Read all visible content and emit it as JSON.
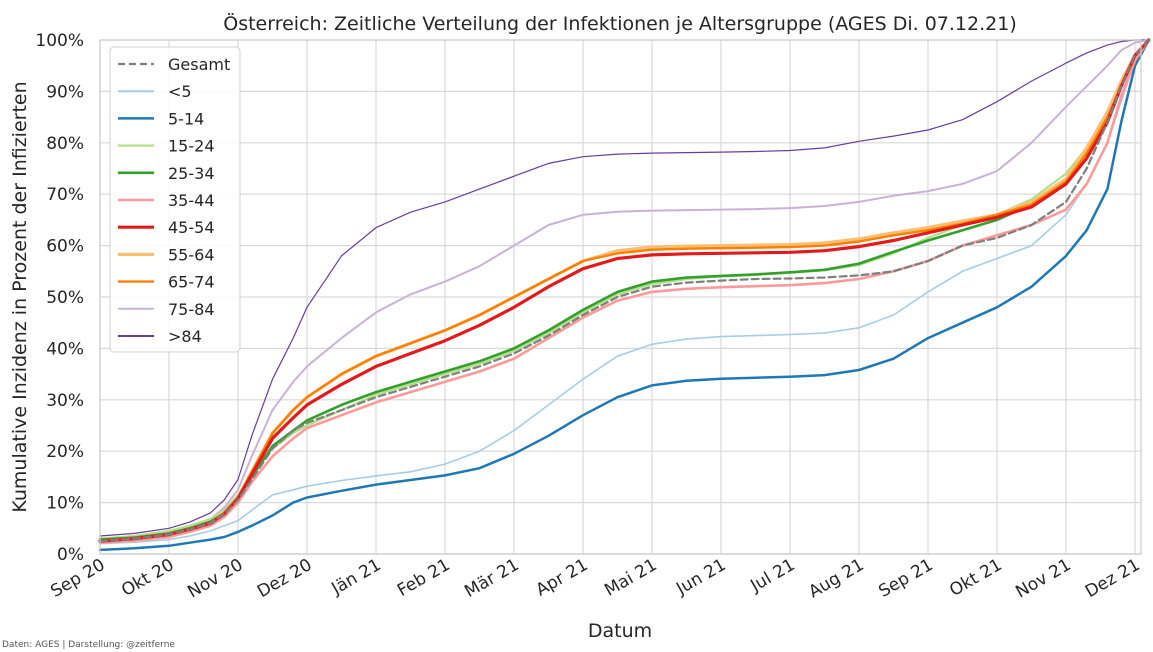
{
  "footer": "Daten: AGES | Darstellung: @zeitferne",
  "chart_data": {
    "type": "line",
    "title": "Österreich: Zeitliche Verteilung der Infektionen je Altersgruppe (AGES Di. 07.12.21)",
    "xlabel": "Datum",
    "ylabel": "Kumulative Inzidenz in Prozent der Infizierten",
    "x_ticks": [
      "Sep 20",
      "Okt 20",
      "Nov 20",
      "Dez 20",
      "Jän 21",
      "Feb 21",
      "Mär 21",
      "Apr 21",
      "Mai 21",
      "Jun 21",
      "Jul 21",
      "Aug 21",
      "Sep 21",
      "Okt 21",
      "Nov 21",
      "Dez 21"
    ],
    "y_ticks": [
      "0%",
      "10%",
      "20%",
      "30%",
      "40%",
      "50%",
      "60%",
      "70%",
      "80%",
      "90%",
      "100%"
    ],
    "ylim": [
      0,
      100
    ],
    "x_unit": "months since Sep 2020 (Sep 20 = 0, Dez 21 = 15)",
    "xlim": [
      0,
      15.2
    ],
    "grid": true,
    "legend_position": "top-left",
    "x": [
      0,
      0.5,
      1,
      1.3,
      1.6,
      1.8,
      2,
      2.2,
      2.5,
      2.8,
      3,
      3.5,
      4,
      4.5,
      5,
      5.5,
      6,
      6.5,
      7,
      7.5,
      8,
      8.5,
      9,
      9.5,
      10,
      10.5,
      11,
      11.5,
      12,
      12.5,
      13,
      13.5,
      14,
      14.3,
      14.6,
      14.8,
      15,
      15.2
    ],
    "series": [
      {
        "name": "Gesamt",
        "color": "#7f7f7f",
        "style": "dashed",
        "width": 2.2,
        "values": [
          2.5,
          3,
          3.8,
          4.8,
          6,
          7.8,
          10.5,
          14.5,
          20.5,
          24,
          25.5,
          28,
          30.5,
          32.5,
          34.5,
          36.5,
          39,
          42.5,
          46.5,
          50,
          52,
          52.8,
          53.2,
          53.5,
          53.6,
          53.8,
          54.2,
          55,
          57,
          60,
          61.5,
          64,
          68.5,
          75,
          84,
          91,
          97,
          100
        ]
      },
      {
        "name": "<5",
        "color": "#a6cee3",
        "style": "solid",
        "width": 1.6,
        "values": [
          2,
          2.3,
          2.8,
          3.5,
          4.5,
          5.5,
          6.5,
          8.5,
          11.5,
          12.5,
          13.2,
          14.3,
          15.2,
          16,
          17.5,
          20,
          24,
          29,
          34,
          38.5,
          40.8,
          41.8,
          42.3,
          42.5,
          42.7,
          43,
          44,
          46.5,
          51,
          55,
          57.5,
          60,
          66,
          72,
          80,
          88,
          96,
          100
        ]
      },
      {
        "name": "5-14",
        "color": "#1f78b4",
        "style": "solid",
        "width": 2.5,
        "values": [
          0.8,
          1.1,
          1.6,
          2.2,
          2.8,
          3.3,
          4.3,
          5.5,
          7.5,
          10,
          11,
          12.3,
          13.5,
          14.4,
          15.3,
          16.7,
          19.5,
          23,
          27,
          30.5,
          32.8,
          33.7,
          34.1,
          34.3,
          34.5,
          34.8,
          35.8,
          38,
          42,
          45,
          48,
          52,
          58,
          63,
          71,
          84,
          95,
          100
        ]
      },
      {
        "name": "15-24",
        "color": "#b2df8a",
        "style": "solid",
        "width": 2.2,
        "values": [
          3,
          3.5,
          4.5,
          5.5,
          6.8,
          8.5,
          11.5,
          15.5,
          20.5,
          23.5,
          25,
          28,
          31,
          33,
          35,
          37,
          39.5,
          43,
          47,
          50.5,
          52.5,
          53.5,
          54,
          54.3,
          54.7,
          55.2,
          56.2,
          58.5,
          61.5,
          64,
          66,
          69,
          74,
          79,
          86,
          92,
          97,
          100
        ]
      },
      {
        "name": "25-34",
        "color": "#33a02c",
        "style": "solid",
        "width": 2.6,
        "values": [
          2.8,
          3.2,
          4,
          5,
          6.3,
          8,
          11,
          15,
          21,
          24,
          26,
          29,
          31.5,
          33.5,
          35.5,
          37.5,
          40,
          43.5,
          47.5,
          51,
          53,
          53.8,
          54.1,
          54.4,
          54.8,
          55.3,
          56.5,
          58.8,
          61,
          63,
          65,
          68,
          73,
          78,
          85,
          91,
          97,
          100
        ]
      },
      {
        "name": "35-44",
        "color": "#fb9a99",
        "style": "solid",
        "width": 2.6,
        "values": [
          2.2,
          2.6,
          3.3,
          4.3,
          5.5,
          7.2,
          10,
          14,
          19,
          22.5,
          24.5,
          27,
          29.5,
          31.5,
          33.5,
          35.5,
          38,
          42,
          46,
          49.3,
          51,
          51.6,
          51.9,
          52.1,
          52.3,
          52.7,
          53.5,
          55,
          57,
          60,
          62,
          64,
          67,
          72,
          80,
          89,
          96,
          100
        ]
      },
      {
        "name": "45-54",
        "color": "#e31a1c",
        "style": "solid",
        "width": 3.2,
        "values": [
          2.5,
          3,
          3.8,
          4.8,
          6,
          7.8,
          10.8,
          15.5,
          22.5,
          26.5,
          29,
          33,
          36.5,
          39,
          41.5,
          44.5,
          48,
          52,
          55.5,
          57.5,
          58.2,
          58.4,
          58.5,
          58.6,
          58.7,
          59,
          59.8,
          61,
          62.5,
          64,
          65.5,
          67.5,
          72,
          77,
          84,
          91,
          97,
          100
        ]
      },
      {
        "name": "55-64",
        "color": "#fdbf6f",
        "style": "solid",
        "width": 3.2,
        "values": [
          2.5,
          3,
          3.8,
          4.8,
          6,
          8,
          11,
          16,
          23.5,
          28,
          30.5,
          35,
          38.5,
          41,
          43.5,
          46.5,
          50,
          53.5,
          57,
          59,
          59.7,
          59.9,
          60,
          60.1,
          60.2,
          60.5,
          61.3,
          62.5,
          63.5,
          64.8,
          66,
          68.5,
          73,
          79,
          86,
          92,
          97,
          100
        ]
      },
      {
        "name": "65-74",
        "color": "#ff7f00",
        "style": "solid",
        "width": 2.4,
        "values": [
          2.5,
          3,
          3.8,
          4.8,
          6,
          8,
          11,
          16,
          23.5,
          28,
          30.5,
          35,
          38.5,
          41,
          43.5,
          46.5,
          50,
          53.5,
          57,
          58.5,
          59.2,
          59.4,
          59.5,
          59.6,
          59.7,
          60,
          60.8,
          62,
          63,
          64.3,
          66,
          68,
          72.5,
          78,
          85,
          91,
          97,
          100
        ]
      },
      {
        "name": "75-84",
        "color": "#cab2d6",
        "style": "solid",
        "width": 2,
        "values": [
          2.8,
          3.3,
          4.2,
          5.3,
          6.8,
          9,
          12.5,
          19,
          28,
          33.5,
          36.5,
          42,
          47,
          50.5,
          53,
          56,
          60,
          64,
          66,
          66.6,
          66.8,
          66.9,
          67,
          67.1,
          67.3,
          67.7,
          68.5,
          69.7,
          70.6,
          72,
          74.5,
          80,
          87,
          91,
          95,
          98,
          99.5,
          100
        ]
      },
      {
        "name": ">84",
        "color": "#6a3d9a",
        "style": "solid",
        "width": 1.2,
        "values": [
          3.5,
          4,
          5,
          6.2,
          8,
          10.5,
          14.5,
          23,
          34,
          42,
          48,
          58,
          63.5,
          66.5,
          68.5,
          71,
          73.5,
          76,
          77.3,
          77.8,
          78,
          78.1,
          78.2,
          78.3,
          78.5,
          79,
          80.3,
          81.3,
          82.5,
          84.5,
          88,
          92,
          95.5,
          97.5,
          99,
          99.7,
          100,
          100
        ]
      }
    ]
  }
}
